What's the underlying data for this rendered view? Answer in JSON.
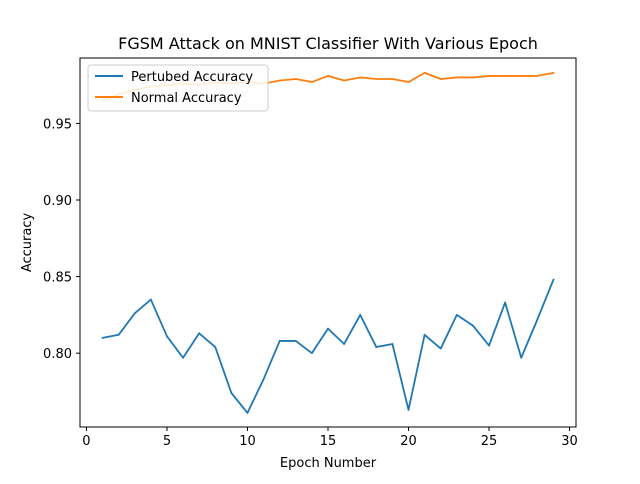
{
  "chart_data": {
    "type": "line",
    "title": "FGSM Attack on MNIST Classifier With Various Epoch",
    "xlabel": "Epoch Number",
    "ylabel": "Accuracy",
    "xlim": [
      -0.4,
      30.4
    ],
    "ylim": [
      0.7518,
      0.9927
    ],
    "xticks": [
      0,
      5,
      10,
      15,
      20,
      25,
      30
    ],
    "xtick_labels": [
      "0",
      "5",
      "10",
      "15",
      "20",
      "25",
      "30"
    ],
    "yticks": [
      0.8,
      0.85,
      0.9,
      0.95
    ],
    "ytick_labels": [
      "0.80",
      "0.85",
      "0.90",
      "0.95"
    ],
    "grid": false,
    "legend_position": "top-left",
    "x": [
      1,
      2,
      3,
      4,
      5,
      6,
      7,
      8,
      9,
      10,
      11,
      12,
      13,
      14,
      15,
      16,
      17,
      18,
      19,
      20,
      21,
      22,
      23,
      24,
      25,
      26,
      27,
      28,
      29
    ],
    "series": [
      {
        "name": "Pertubed Accuracy",
        "color": "#1f77b4",
        "values": [
          0.81,
          0.812,
          0.826,
          0.835,
          0.811,
          0.797,
          0.813,
          0.804,
          0.774,
          0.761,
          0.783,
          0.808,
          0.808,
          0.8,
          0.816,
          0.806,
          0.825,
          0.804,
          0.806,
          0.763,
          0.812,
          0.803,
          0.825,
          0.818,
          0.805,
          0.833,
          0.797,
          0.822,
          0.848
        ]
      },
      {
        "name": "Normal Accuracy",
        "color": "#ff7f0e",
        "values": [
          0.965,
          0.969,
          0.972,
          0.974,
          0.975,
          0.976,
          0.975,
          0.977,
          0.976,
          0.977,
          0.976,
          0.978,
          0.979,
          0.977,
          0.981,
          0.978,
          0.98,
          0.979,
          0.979,
          0.977,
          0.983,
          0.979,
          0.98,
          0.98,
          0.981,
          0.981,
          0.981,
          0.981,
          0.983
        ]
      }
    ]
  }
}
